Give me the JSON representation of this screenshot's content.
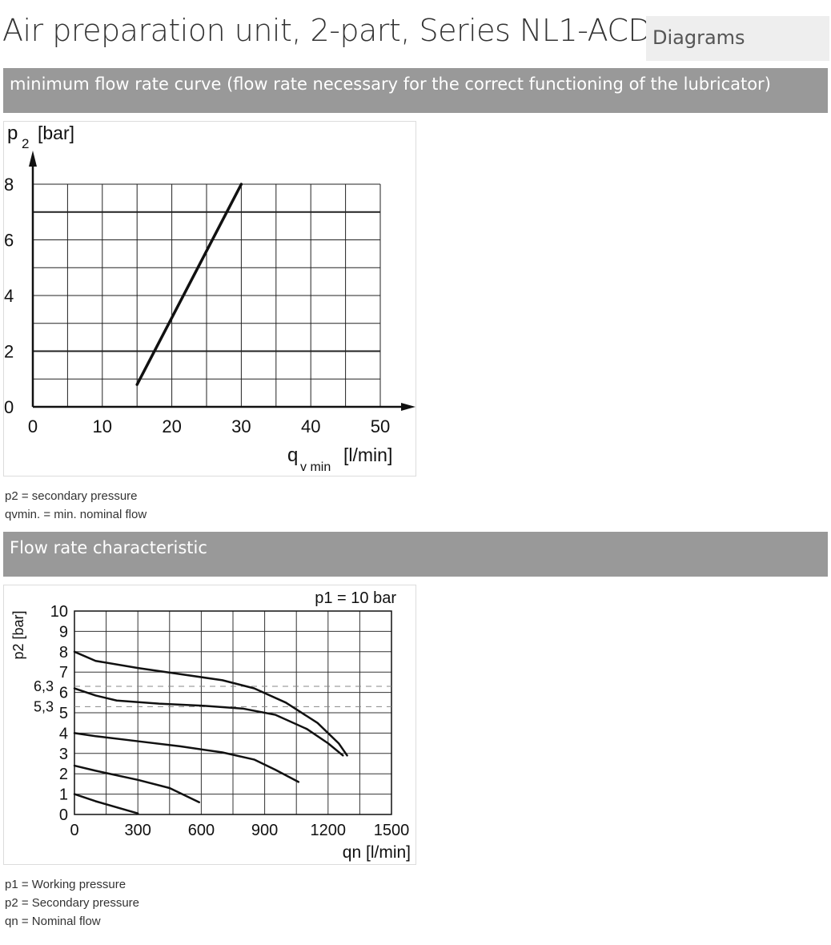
{
  "page": {
    "title": "Air preparation unit, 2-part, Series NL1-ACD",
    "tag": "Diagrams"
  },
  "sections": [
    {
      "heading": "minimum flow rate curve (flow rate necessary for the correct functioning of the lubricator)",
      "captions": [
        "p2 = secondary pressure",
        "qvmin. = min. nominal flow"
      ]
    },
    {
      "heading": "Flow rate characteristic",
      "captions": [
        "p1 = Working pressure",
        "p2 = Secondary pressure",
        "qn = Nominal flow"
      ]
    }
  ],
  "chart_data": [
    {
      "type": "line",
      "title": "",
      "ylabel": "p",
      "ylabel_sub": "2",
      "ylabel_unit": "[bar]",
      "xlabel": "q",
      "xlabel_sub": "v min",
      "xlabel_unit": "[l/min]",
      "xlim": [
        0,
        50
      ],
      "ylim": [
        0,
        8
      ],
      "xticks": [
        "0",
        "10",
        "20",
        "30",
        "40",
        "50"
      ],
      "yticks": [
        "0",
        "2",
        "4",
        "6",
        "8"
      ],
      "grid": true,
      "series": [
        {
          "x": [
            15,
            30
          ],
          "y": [
            0.8,
            8
          ]
        }
      ]
    },
    {
      "type": "line",
      "title": "",
      "annotation": "p1 = 10 bar",
      "ylabel": "p2 [bar]",
      "xlabel": "qn [l/min]",
      "xlim": [
        0,
        1500
      ],
      "ylim": [
        0,
        10
      ],
      "xticks": [
        "0",
        "300",
        "600",
        "900",
        "1200",
        "1500"
      ],
      "yticks": [
        "0",
        "1",
        "2",
        "3",
        "4",
        "5",
        "6",
        "7",
        "8",
        "9",
        "10"
      ],
      "extra_yticks": [
        {
          "value": 6.3,
          "label": "6,3"
        },
        {
          "value": 5.3,
          "label": "5,3"
        }
      ],
      "grid": true,
      "series": [
        {
          "x": [
            0,
            100,
            300,
            500,
            700,
            850,
            1000,
            1150,
            1250,
            1290
          ],
          "y": [
            8,
            7.55,
            7.2,
            6.9,
            6.6,
            6.2,
            5.5,
            4.5,
            3.5,
            2.9
          ]
        },
        {
          "x": [
            0,
            100,
            200,
            400,
            600,
            800,
            950,
            1100,
            1200,
            1270
          ],
          "y": [
            6.2,
            5.85,
            5.6,
            5.45,
            5.35,
            5.2,
            4.9,
            4.2,
            3.5,
            2.9
          ]
        },
        {
          "x": [
            0,
            100,
            300,
            500,
            700,
            850,
            950,
            1060
          ],
          "y": [
            4,
            3.85,
            3.6,
            3.35,
            3.05,
            2.7,
            2.2,
            1.6
          ]
        },
        {
          "x": [
            0,
            100,
            300,
            450,
            590
          ],
          "y": [
            2.4,
            2.15,
            1.7,
            1.3,
            0.6
          ]
        },
        {
          "x": [
            0,
            100,
            300
          ],
          "y": [
            1,
            0.65,
            0.05
          ]
        }
      ]
    }
  ]
}
